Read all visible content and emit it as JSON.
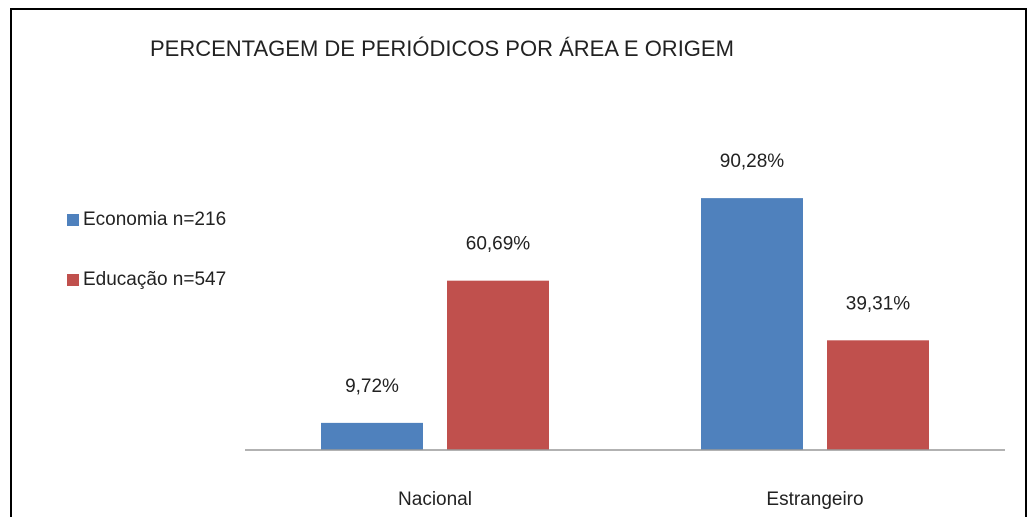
{
  "chart_data": {
    "type": "bar",
    "title": "PERCENTAGEM DE PERIÓDICOS POR ÁREA E ORIGEM",
    "categories": [
      "Nacional",
      "Estrangeiro"
    ],
    "series": [
      {
        "name": "Economia n=216",
        "color": "#4f81bd",
        "values": [
          9.72,
          90.28
        ],
        "value_labels": [
          "9,72%",
          "90,28%"
        ]
      },
      {
        "name": "Educação n=547",
        "color": "#c0504d",
        "values": [
          60.69,
          39.31
        ],
        "value_labels": [
          "60,69%",
          "39,31%"
        ]
      }
    ],
    "ylim": [
      0,
      100
    ],
    "legend": "left"
  }
}
